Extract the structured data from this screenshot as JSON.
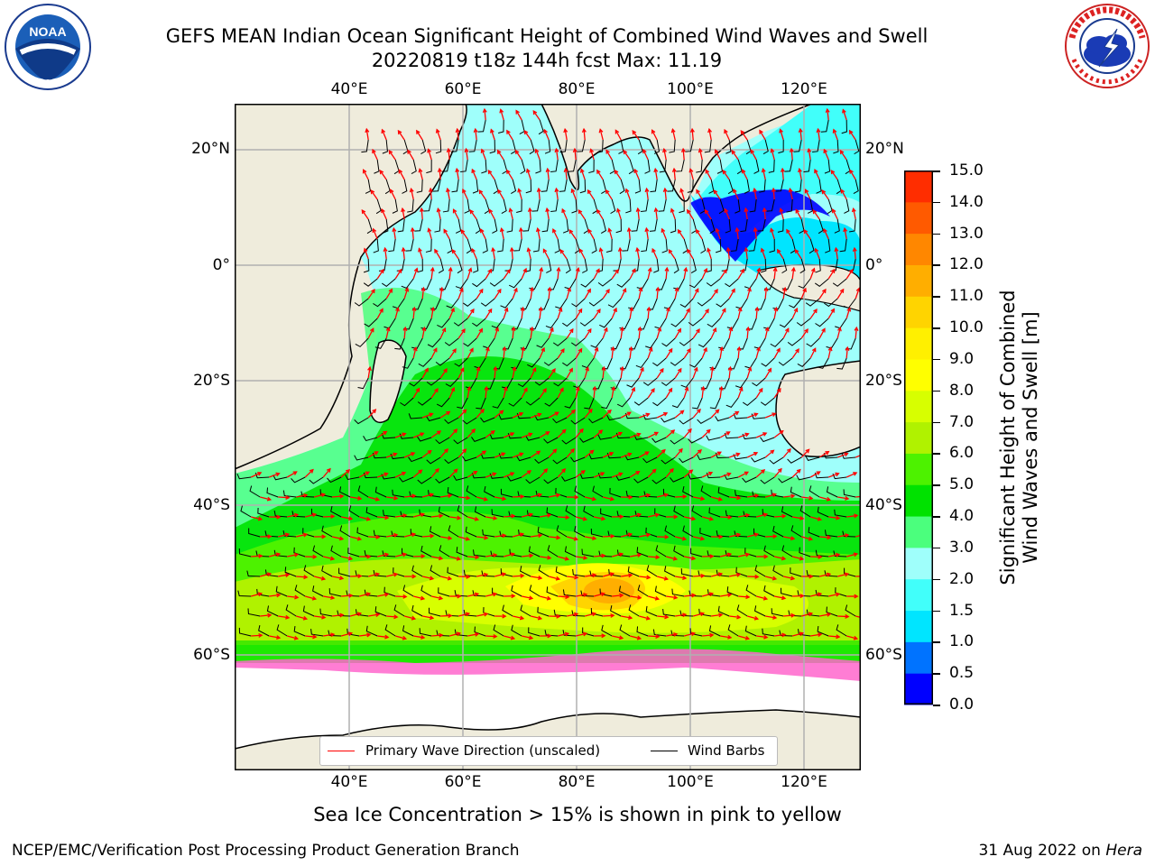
{
  "header": {
    "title_line1": "GEFS MEAN Indian Ocean Significant Height of Combined Wind Waves and Swell",
    "title_line2": "20220819 t18z 144h fcst   Max: 11.19"
  },
  "logos": {
    "left": {
      "name": "noaa-logo",
      "text": "NOAA"
    },
    "right": {
      "name": "national-weather-service-logo",
      "text": "NATIONAL WEATHER SERVICE"
    }
  },
  "map": {
    "type": "Significant wave height contour map with wind barbs and wave direction arrows",
    "lon_range": [
      20,
      130
    ],
    "lat_range": [
      -75,
      28
    ],
    "lon_ticks": [
      "40°E",
      "60°E",
      "80°E",
      "100°E",
      "120°E"
    ],
    "lat_ticks_left": [
      "20°N",
      "0°",
      "20°S",
      "40°S",
      "60°S"
    ],
    "lat_ticks_right": [
      "20°N",
      "0°",
      "20°S",
      "40°S",
      "60°S"
    ],
    "max_value": 11.19,
    "land_color": "#efecdc",
    "grid": true
  },
  "legend": {
    "wave_label": "Primary Wave Direction (unscaled)",
    "wave_color": "#ff0000",
    "wind_label": "Wind Barbs",
    "wind_color": "#000000"
  },
  "colorbar": {
    "label_line1": "Significant Height of Combined",
    "label_line2": "Wind Waves and Swell [m]",
    "ticks": [
      "0.0",
      "0.5",
      "1.0",
      "1.5",
      "2.0",
      "3.0",
      "4.0",
      "5.0",
      "6.0",
      "7.0",
      "8.0",
      "9.0",
      "10.0",
      "11.0",
      "12.0",
      "13.0",
      "14.0",
      "15.0"
    ],
    "colors": [
      "#0000ff",
      "#0073ff",
      "#00e5ff",
      "#41fffa",
      "#9ffffb",
      "#4bff7d",
      "#00e200",
      "#4df200",
      "#b0f200",
      "#d7ff00",
      "#ffff00",
      "#fff000",
      "#ffd400",
      "#ffae00",
      "#ff8700",
      "#ff5a00",
      "#ff2d00"
    ]
  },
  "caption": "Sea Ice Concentration > 15% is shown in pink to yellow",
  "footer": {
    "left": "NCEP/EMC/Verification Post Processing Product Generation Branch",
    "right_date": "31 Aug 2022 on ",
    "right_host": "Hera"
  }
}
